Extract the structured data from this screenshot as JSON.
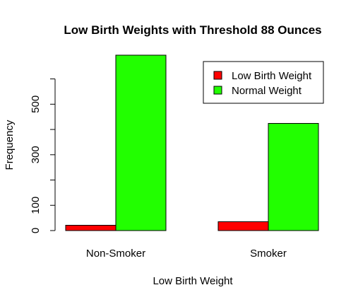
{
  "chart_data": {
    "type": "bar",
    "title": "Low Birth Weights with Threshold 88 Ounces",
    "xlabel": "Low Birth Weight",
    "ylabel": "Frequency",
    "categories": [
      "Non-Smoker",
      "Smoker"
    ],
    "series": [
      {
        "name": "Low Birth Weight",
        "color": "#ff0000",
        "values": [
          21,
          35
        ]
      },
      {
        "name": "Normal Weight",
        "color": "#22ff00",
        "values": [
          694,
          424
        ]
      }
    ],
    "ylim": [
      0,
      694
    ],
    "yticks": [
      0,
      100,
      300,
      500
    ],
    "yticks_minor": [
      200,
      400,
      600
    ],
    "grid": false,
    "legend_position": "top-right",
    "bar_mode": "grouped"
  }
}
